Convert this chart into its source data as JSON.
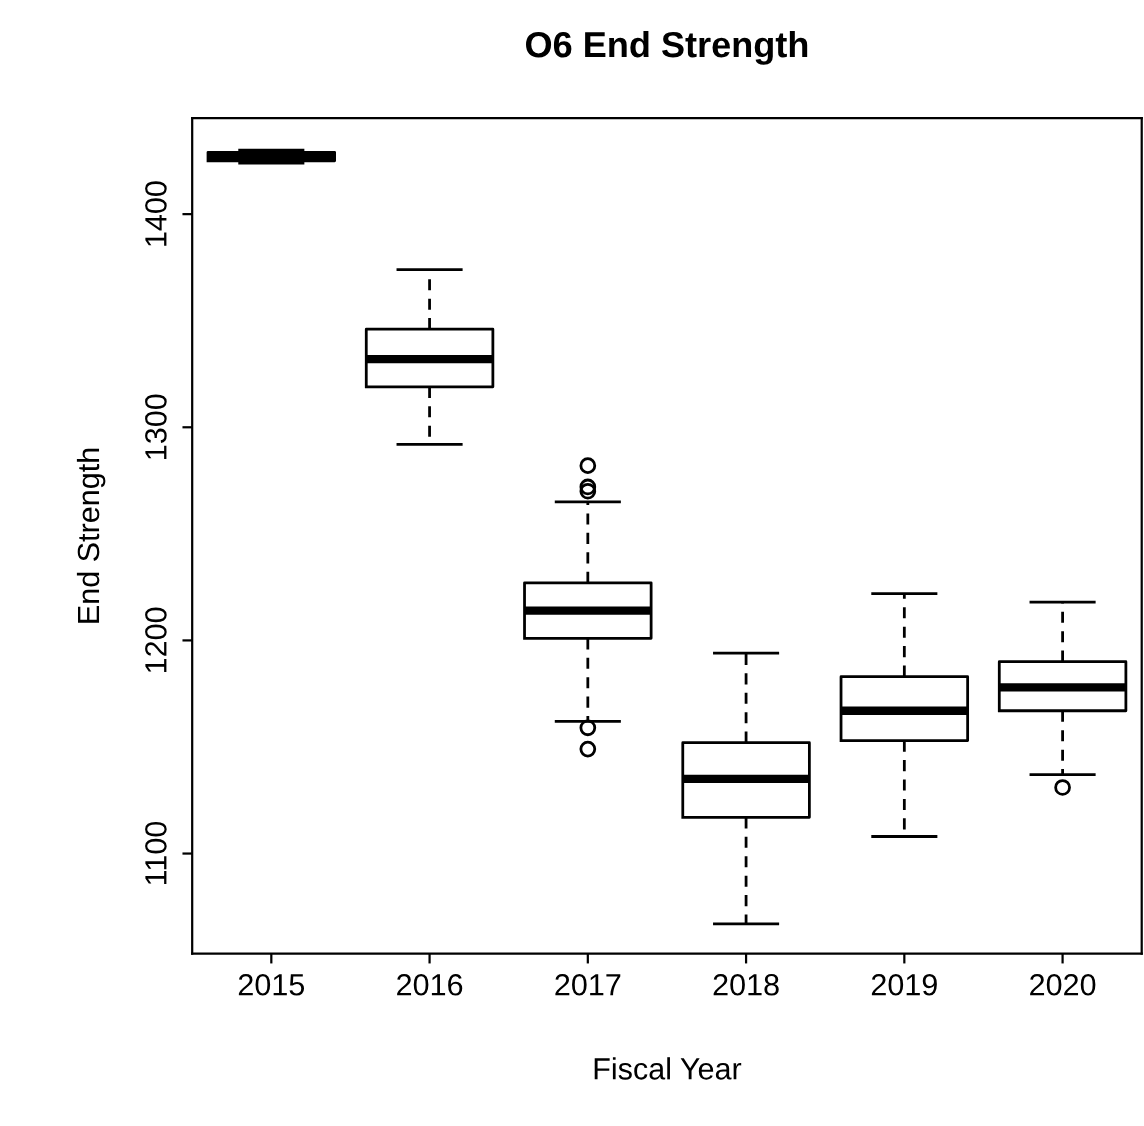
{
  "chart_data": {
    "type": "box",
    "title": "O6 End Strength",
    "xlabel": "Fiscal Year",
    "ylabel": "End Strength",
    "categories": [
      "2015",
      "2016",
      "2017",
      "2018",
      "2019",
      "2020"
    ],
    "boxes": [
      {
        "low": 1424,
        "q1": 1425,
        "median": 1427,
        "q3": 1429,
        "high": 1430
      },
      {
        "low": 1292,
        "q1": 1319,
        "median": 1332,
        "q3": 1346,
        "high": 1374
      },
      {
        "low": 1162,
        "q1": 1201,
        "median": 1214,
        "q3": 1227,
        "high": 1265,
        "outliers": [
          1282,
          1272,
          1270,
          1159,
          1149
        ]
      },
      {
        "low": 1067,
        "q1": 1117,
        "median": 1135,
        "q3": 1152,
        "high": 1194
      },
      {
        "low": 1108,
        "q1": 1153,
        "median": 1167,
        "q3": 1183,
        "high": 1222
      },
      {
        "low": 1137,
        "q1": 1167,
        "median": 1178,
        "q3": 1190,
        "high": 1218,
        "outliers": [
          1131
        ]
      }
    ],
    "ylim": [
      1053,
      1445
    ],
    "yticks": [
      1100,
      1200,
      1300,
      1400
    ],
    "grid": false,
    "legend": false
  }
}
